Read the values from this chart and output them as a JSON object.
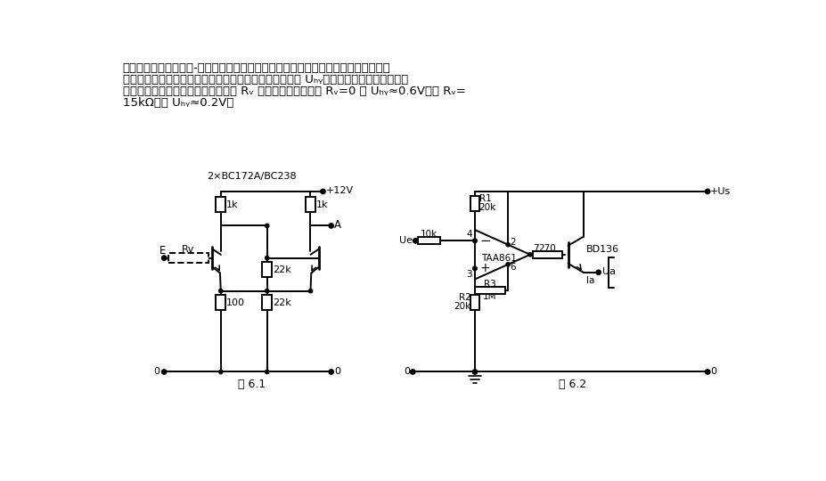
{
  "bg_color": "#ffffff",
  "fig1_title": "2×BC172A/BC238",
  "fig1_label": "图 6.1",
  "fig2_label": "图 6.2",
  "header": [
    "采用施密特触发器作模-数转换器，其输出决定于输入信号大小且仅有两种状态。在输",
    "入电压上升和下降换接时间之间的电压差値称为滞环电压 Uₕᵧ，其大小可以通过改变左晶",
    "体管的阈値电压而改变，并且同电阱 Rᵥ 大小有关。如本例中 Rᵥ=0 则 Uₕᵧ≈0.6V；如 Rᵥ=",
    "15kΩ，则 Uₕᵧ≈0.2V。"
  ]
}
